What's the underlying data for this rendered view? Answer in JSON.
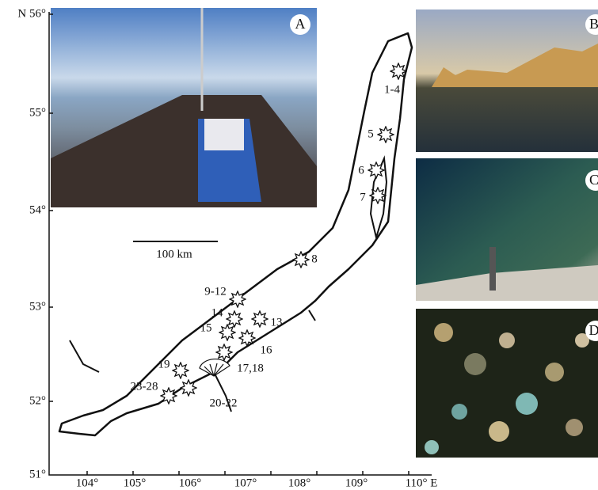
{
  "map": {
    "lat_labels": [
      "N 56°",
      "55°",
      "54°",
      "53°",
      "52°",
      "51°"
    ],
    "lon_labels": [
      "104°",
      "105°",
      "106°",
      "107°",
      "108°",
      "109°",
      "110° E"
    ],
    "sites": [
      "1-4",
      "5",
      "6",
      "7",
      "8",
      "9-12",
      "14",
      "15",
      "13",
      "16",
      "17,18",
      "19",
      "23-28",
      "20-22"
    ],
    "scale_bar": "100 km"
  },
  "panels": [
    "A",
    "B",
    "C",
    "D"
  ]
}
